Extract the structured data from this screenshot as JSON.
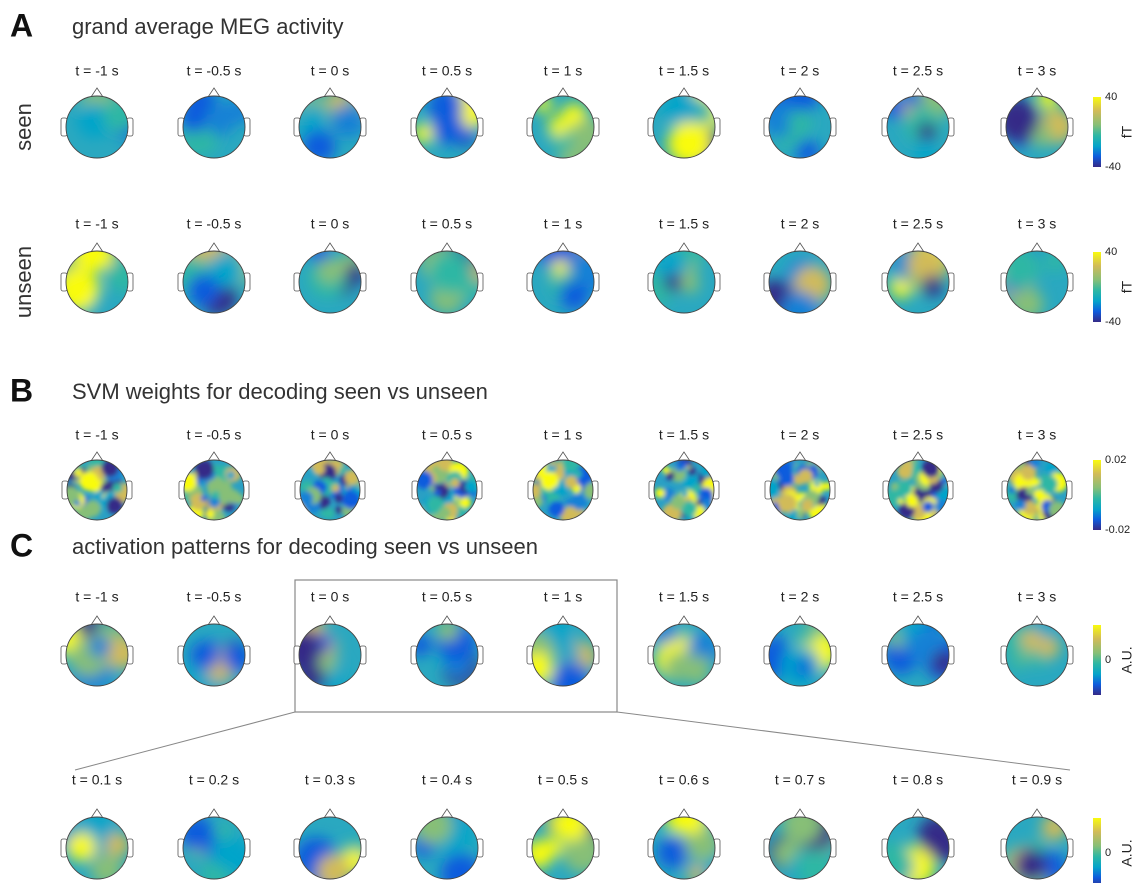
{
  "panels": [
    {
      "letter": "A",
      "title": "grand average MEG activity",
      "rows": [
        {
          "label": "seen",
          "times": [
            "t = -1 s",
            "t = -0.5 s",
            "t = 0 s",
            "t = 0.5 s",
            "t = 1 s",
            "t = 1.5 s",
            "t = 2 s",
            "t = 2.5 s",
            "t = 3 s"
          ],
          "colorbar": {
            "ticks": [
              40,
              -40
            ],
            "unit": "fT"
          }
        },
        {
          "label": "unseen",
          "times": [
            "t = -1 s",
            "t = -0.5 s",
            "t = 0 s",
            "t = 0.5 s",
            "t = 1 s",
            "t = 1.5 s",
            "t = 2 s",
            "t = 2.5 s",
            "t = 3 s"
          ],
          "colorbar": {
            "ticks": [
              40,
              -40
            ],
            "unit": "fT"
          }
        }
      ]
    },
    {
      "letter": "B",
      "title": "SVM weights for decoding seen vs unseen",
      "rows": [
        {
          "times": [
            "t = -1 s",
            "t = -0.5 s",
            "t = 0 s",
            "t = 0.5 s",
            "t = 1 s",
            "t = 1.5 s",
            "t = 2 s",
            "t = 2.5 s",
            "t = 3 s"
          ],
          "colorbar": {
            "ticks": [
              0.02,
              -0.02
            ]
          }
        }
      ]
    },
    {
      "letter": "C",
      "title": "activation patterns for decoding seen vs unseen",
      "rows": [
        {
          "times": [
            "t = -1 s",
            "t = -0.5 s",
            "t = 0 s",
            "t = 0.5 s",
            "t = 1 s",
            "t = 1.5 s",
            "t = 2 s",
            "t = 2.5 s",
            "t = 3 s"
          ],
          "colorbar": {
            "ticks": [
              0
            ],
            "unit": "A.U."
          }
        },
        {
          "times": [
            "t = 0.1 s",
            "t = 0.2 s",
            "t = 0.3 s",
            "t = 0.4 s",
            "t = 0.5 s",
            "t = 0.6 s",
            "t = 0.7 s",
            "t = 0.8 s",
            "t = 0.9 s"
          ],
          "colorbar": {
            "ticks": [
              0
            ],
            "unit": "A.U."
          }
        }
      ]
    }
  ]
}
